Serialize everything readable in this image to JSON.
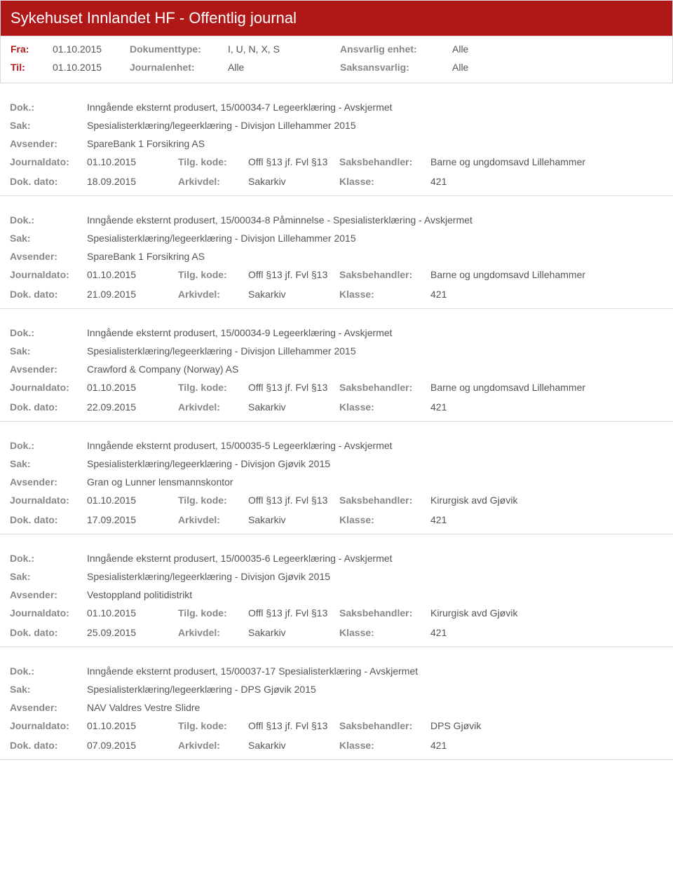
{
  "header": {
    "title": "Sykehuset Innlandet HF - Offentlig journal"
  },
  "meta": {
    "fra_label": "Fra:",
    "fra_value": "01.10.2015",
    "til_label": "Til:",
    "til_value": "01.10.2015",
    "dokumenttype_label": "Dokumenttype:",
    "dokumenttype_value": "I, U, N, X, S",
    "journalenhet_label": "Journalenhet:",
    "journalenhet_value": "Alle",
    "ansvarlig_label": "Ansvarlig enhet:",
    "ansvarlig_value": "Alle",
    "saksansvarlig_label": "Saksansvarlig:",
    "saksansvarlig_value": "Alle"
  },
  "labels": {
    "dok": "Dok.:",
    "sak": "Sak:",
    "avsender": "Avsender:",
    "journaldato": "Journaldato:",
    "dokdato": "Dok. dato:",
    "tilgkode": "Tilg. kode:",
    "arkivdel": "Arkivdel:",
    "saksbehandler": "Saksbehandler:",
    "klasse": "Klasse:"
  },
  "entries": [
    {
      "dok": "Inngående eksternt produsert, 15/00034-7 Legeerklæring - Avskjermet",
      "sak": "Spesialisterklæring/legeerklæring - Divisjon Lillehammer 2015",
      "avsender": "SpareBank 1 Forsikring AS",
      "journaldato": "01.10.2015",
      "tilgkode": "Offl §13 jf. Fvl §13",
      "saksbehandler": "Barne og ungdomsavd Lillehammer",
      "dokdato": "18.09.2015",
      "arkivdel": "Sakarkiv",
      "klasse": "421"
    },
    {
      "dok": "Inngående eksternt produsert, 15/00034-8 Påminnelse - Spesialisterklæring - Avskjermet",
      "sak": "Spesialisterklæring/legeerklæring - Divisjon Lillehammer 2015",
      "avsender": "SpareBank 1 Forsikring AS",
      "journaldato": "01.10.2015",
      "tilgkode": "Offl §13 jf. Fvl §13",
      "saksbehandler": "Barne og ungdomsavd Lillehammer",
      "dokdato": "21.09.2015",
      "arkivdel": "Sakarkiv",
      "klasse": "421"
    },
    {
      "dok": "Inngående eksternt produsert, 15/00034-9 Legeerklæring - Avskjermet",
      "sak": "Spesialisterklæring/legeerklæring - Divisjon Lillehammer 2015",
      "avsender": "Crawford & Company (Norway) AS",
      "journaldato": "01.10.2015",
      "tilgkode": "Offl §13 jf. Fvl §13",
      "saksbehandler": "Barne og ungdomsavd Lillehammer",
      "dokdato": "22.09.2015",
      "arkivdel": "Sakarkiv",
      "klasse": "421"
    },
    {
      "dok": "Inngående eksternt produsert, 15/00035-5 Legeerklæring - Avskjermet",
      "sak": "Spesialisterklæring/legeerklæring - Divisjon Gjøvik 2015",
      "avsender": "Gran og Lunner lensmannskontor",
      "journaldato": "01.10.2015",
      "tilgkode": "Offl §13 jf. Fvl §13",
      "saksbehandler": "Kirurgisk avd Gjøvik",
      "dokdato": "17.09.2015",
      "arkivdel": "Sakarkiv",
      "klasse": "421"
    },
    {
      "dok": "Inngående eksternt produsert, 15/00035-6 Legeerklæring - Avskjermet",
      "sak": "Spesialisterklæring/legeerklæring - Divisjon Gjøvik 2015",
      "avsender": "Vestoppland politidistrikt",
      "journaldato": "01.10.2015",
      "tilgkode": "Offl §13 jf. Fvl §13",
      "saksbehandler": "Kirurgisk avd Gjøvik",
      "dokdato": "25.09.2015",
      "arkivdel": "Sakarkiv",
      "klasse": "421"
    },
    {
      "dok": "Inngående eksternt produsert, 15/00037-17 Spesialisterklæring - Avskjermet",
      "sak": "Spesialisterklæring/legeerklæring - DPS Gjøvik 2015",
      "avsender": "NAV Valdres Vestre Slidre",
      "journaldato": "01.10.2015",
      "tilgkode": "Offl §13 jf. Fvl §13",
      "saksbehandler": "DPS Gjøvik",
      "dokdato": "07.09.2015",
      "arkivdel": "Sakarkiv",
      "klasse": "421"
    }
  ]
}
